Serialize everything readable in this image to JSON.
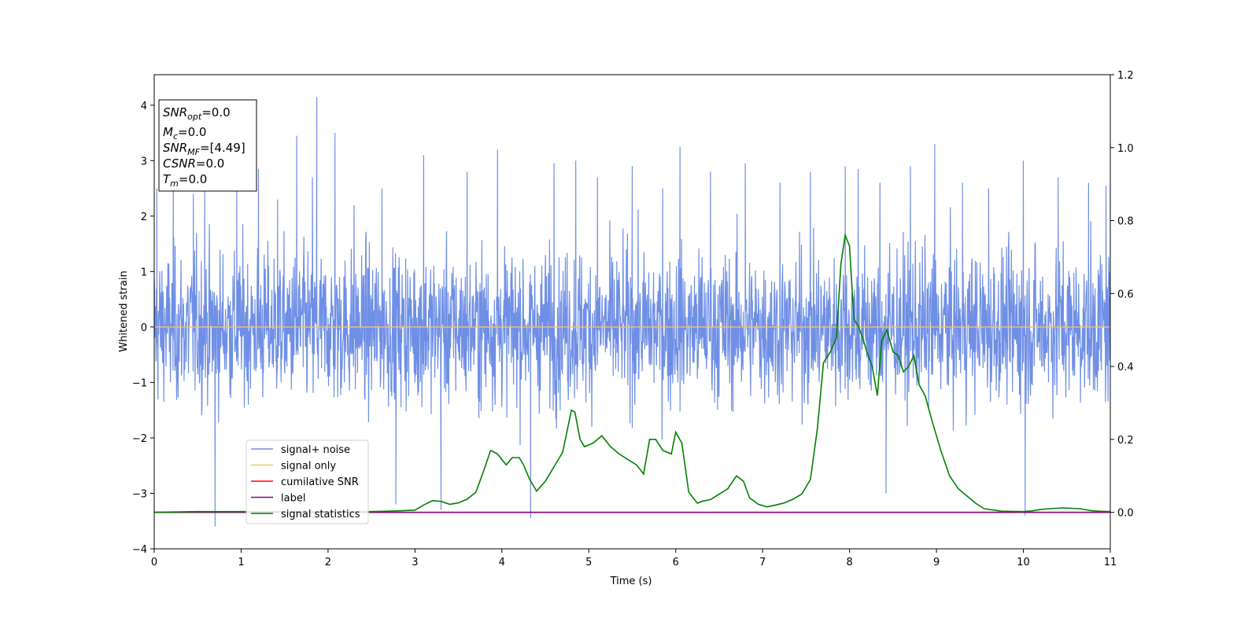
{
  "chart_data": {
    "type": "line",
    "xlabel": "Time (s)",
    "ylabel": "Whitened strain",
    "xlim": [
      0,
      11
    ],
    "ylim": [
      -4,
      4.55
    ],
    "ylim_right": [
      -0.1,
      1.2
    ],
    "x_ticks": [
      0,
      1,
      2,
      3,
      4,
      5,
      6,
      7,
      8,
      9,
      10,
      11
    ],
    "y_ticks": [
      -4,
      -3,
      -2,
      -1,
      0,
      1,
      2,
      3,
      4
    ],
    "y_right_ticks": [
      0.0,
      0.2,
      0.4,
      0.6,
      0.8,
      1.0,
      1.2
    ],
    "grid": false,
    "legend_position": "lower-left",
    "colors": {
      "signal_noise": "#6f8fe6",
      "signal_only": "#f5c26b",
      "cumulative_snr": "#ff0000",
      "label": "#800080",
      "signal_statistics": "#008000"
    },
    "series": [
      {
        "name": "signal+ noise",
        "axis": "left",
        "description_kind": "noise",
        "envelope": {
          "typical_low": -1.6,
          "typical_high": 1.6
        },
        "spikes": [
          [
            0.03,
            2.5
          ],
          [
            0.22,
            2.9
          ],
          [
            0.45,
            2.4
          ],
          [
            0.58,
            2.6
          ],
          [
            0.7,
            -3.6
          ],
          [
            0.95,
            2.7
          ],
          [
            1.2,
            2.85
          ],
          [
            1.42,
            2.3
          ],
          [
            1.64,
            3.45
          ],
          [
            1.82,
            2.7
          ],
          [
            1.87,
            4.15
          ],
          [
            2.08,
            3.5
          ],
          [
            2.3,
            2.2
          ],
          [
            2.62,
            2.5
          ],
          [
            2.78,
            -3.2
          ],
          [
            3.1,
            3.1
          ],
          [
            3.3,
            -3.3
          ],
          [
            3.6,
            2.8
          ],
          [
            3.95,
            3.2
          ],
          [
            4.33,
            -3.45
          ],
          [
            4.6,
            2.95
          ],
          [
            4.85,
            3.0
          ],
          [
            5.1,
            2.7
          ],
          [
            5.5,
            2.9
          ],
          [
            5.85,
            2.5
          ],
          [
            6.05,
            3.25
          ],
          [
            6.4,
            2.8
          ],
          [
            6.8,
            2.95
          ],
          [
            7.2,
            2.6
          ],
          [
            7.55,
            2.8
          ],
          [
            7.95,
            2.9
          ],
          [
            8.1,
            2.85
          ],
          [
            8.35,
            2.6
          ],
          [
            8.42,
            -3.0
          ],
          [
            8.7,
            2.9
          ],
          [
            8.98,
            3.3
          ],
          [
            9.3,
            2.6
          ],
          [
            9.6,
            2.5
          ],
          [
            10.0,
            3.0
          ],
          [
            10.02,
            -3.4
          ],
          [
            10.4,
            2.7
          ],
          [
            10.75,
            2.6
          ],
          [
            10.95,
            2.55
          ]
        ]
      },
      {
        "name": "signal only",
        "axis": "left",
        "x": [
          0,
          11
        ],
        "y": [
          0,
          0
        ]
      },
      {
        "name": "cumilative SNR",
        "axis": "right",
        "x": [
          0,
          11
        ],
        "y": [
          0,
          0
        ]
      },
      {
        "name": "label",
        "axis": "right",
        "x": [
          0,
          11
        ],
        "y": [
          0,
          0
        ]
      },
      {
        "name": "signal statistics",
        "axis": "right",
        "x": [
          0,
          0.5,
          1,
          1.5,
          2,
          2.5,
          2.8,
          3.0,
          3.1,
          3.2,
          3.3,
          3.4,
          3.5,
          3.6,
          3.7,
          3.8,
          3.87,
          3.95,
          4.05,
          4.12,
          4.2,
          4.25,
          4.32,
          4.4,
          4.5,
          4.6,
          4.7,
          4.8,
          4.84,
          4.9,
          4.95,
          5.05,
          5.15,
          5.25,
          5.35,
          5.45,
          5.55,
          5.63,
          5.7,
          5.77,
          5.85,
          5.95,
          6.0,
          6.07,
          6.15,
          6.25,
          6.3,
          6.4,
          6.5,
          6.6,
          6.7,
          6.78,
          6.85,
          6.95,
          7.05,
          7.15,
          7.25,
          7.35,
          7.45,
          7.55,
          7.63,
          7.7,
          7.78,
          7.85,
          7.9,
          7.95,
          8.0,
          8.05,
          8.1,
          8.15,
          8.2,
          8.26,
          8.32,
          8.37,
          8.43,
          8.5,
          8.56,
          8.62,
          8.68,
          8.74,
          8.8,
          8.87,
          8.95,
          9.05,
          9.15,
          9.25,
          9.35,
          9.45,
          9.55,
          9.75,
          10.0,
          10.1,
          10.2,
          10.3,
          10.45,
          10.65,
          10.8,
          11.0
        ],
        "y": [
          0.0,
          0.002,
          0.002,
          0.002,
          0.002,
          0.002,
          0.004,
          0.006,
          0.02,
          0.032,
          0.03,
          0.022,
          0.026,
          0.036,
          0.055,
          0.12,
          0.17,
          0.16,
          0.13,
          0.15,
          0.15,
          0.13,
          0.09,
          0.058,
          0.085,
          0.125,
          0.165,
          0.28,
          0.275,
          0.2,
          0.18,
          0.19,
          0.21,
          0.18,
          0.16,
          0.145,
          0.13,
          0.105,
          0.2,
          0.2,
          0.17,
          0.16,
          0.22,
          0.19,
          0.055,
          0.025,
          0.03,
          0.035,
          0.05,
          0.065,
          0.1,
          0.085,
          0.04,
          0.022,
          0.015,
          0.02,
          0.026,
          0.036,
          0.05,
          0.09,
          0.23,
          0.41,
          0.44,
          0.48,
          0.68,
          0.76,
          0.73,
          0.53,
          0.51,
          0.48,
          0.44,
          0.4,
          0.32,
          0.47,
          0.5,
          0.44,
          0.43,
          0.385,
          0.4,
          0.43,
          0.35,
          0.32,
          0.25,
          0.17,
          0.1,
          0.065,
          0.045,
          0.025,
          0.01,
          0.003,
          0.002,
          0.004,
          0.008,
          0.01,
          0.012,
          0.01,
          0.004,
          0.002
        ]
      }
    ],
    "annotation_box": [
      {
        "base": "SNR",
        "sub": "opt",
        "value": "=0.0"
      },
      {
        "base": "M",
        "sub": "c",
        "value": "=0.0"
      },
      {
        "base": "SNR",
        "sub": "MF",
        "value": "=[4.49]"
      },
      {
        "base": "CSNR",
        "sub": "",
        "value": "=0.0"
      },
      {
        "base": "T",
        "sub": "m",
        "value": "=0.0"
      }
    ]
  }
}
